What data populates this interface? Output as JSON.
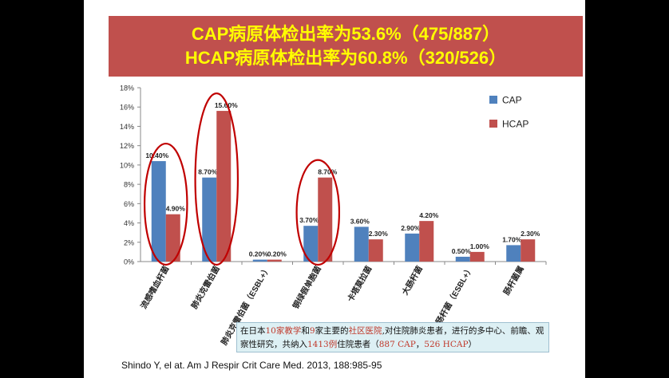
{
  "banner": {
    "line1": "CAP病原体检出率为53.6%（475/887）",
    "line2": "HCAP病原体检出率为60.8%（320/526）"
  },
  "chart_data": {
    "type": "bar",
    "categories": [
      "流感嗜血杆菌",
      "肺炎克雷伯菌",
      "肺炎克雷伯菌（ESBL+）",
      "铜绿假单胞菌",
      "卡塔莫拉菌",
      "大肠杆菌",
      "大肠杆菌（ESBL+）",
      "肠杆菌属"
    ],
    "series": [
      {
        "name": "CAP",
        "values": [
          10.4,
          8.7,
          0.2,
          3.7,
          3.6,
          2.9,
          0.5,
          1.7
        ],
        "labels": [
          "10.40%",
          "8.70%",
          "0.20%",
          "3.70%",
          "3.60%",
          "2.90%",
          "0.50%",
          "1.70%"
        ],
        "color": "#4f81bd"
      },
      {
        "name": "HCAP",
        "values": [
          4.9,
          15.6,
          0.2,
          8.7,
          2.3,
          4.2,
          1.0,
          2.3
        ],
        "labels": [
          "4.90%",
          "15.60%",
          "0.20%",
          "8.70%",
          "2.30%",
          "4.20%",
          "1.00%",
          "2.30%"
        ],
        "color": "#c0504d"
      }
    ],
    "ylim": [
      0,
      18
    ],
    "yticks": [
      "0%",
      "2%",
      "4%",
      "6%",
      "8%",
      "10%",
      "12%",
      "14%",
      "16%",
      "18%"
    ],
    "legend": "top-right",
    "highlighted_categories": [
      "流感嗜血杆菌",
      "肺炎克雷伯菌",
      "铜绿假单胞菌"
    ],
    "highlight_color": "#c00000",
    "title": "",
    "xlabel": "",
    "ylabel": ""
  },
  "note": {
    "p1": "在日本",
    "n1": "10",
    "p2": "家教学",
    "p3": "和",
    "n2": "9",
    "p4": "家主要的",
    "p5": "社区医院",
    "p6": ",对住院肺炎患者，进行的多中心、前瞻、观察性研究，共纳入",
    "n3": "1413",
    "p7": "例",
    "p8": "住院患者（",
    "n4": "887 CAP",
    "p9": "，",
    "n5": "526 HCAP",
    "p10": "）"
  },
  "citation": "Shindo Y, el at. Am J Respir Crit Care Med. 2013, 188:985-95"
}
